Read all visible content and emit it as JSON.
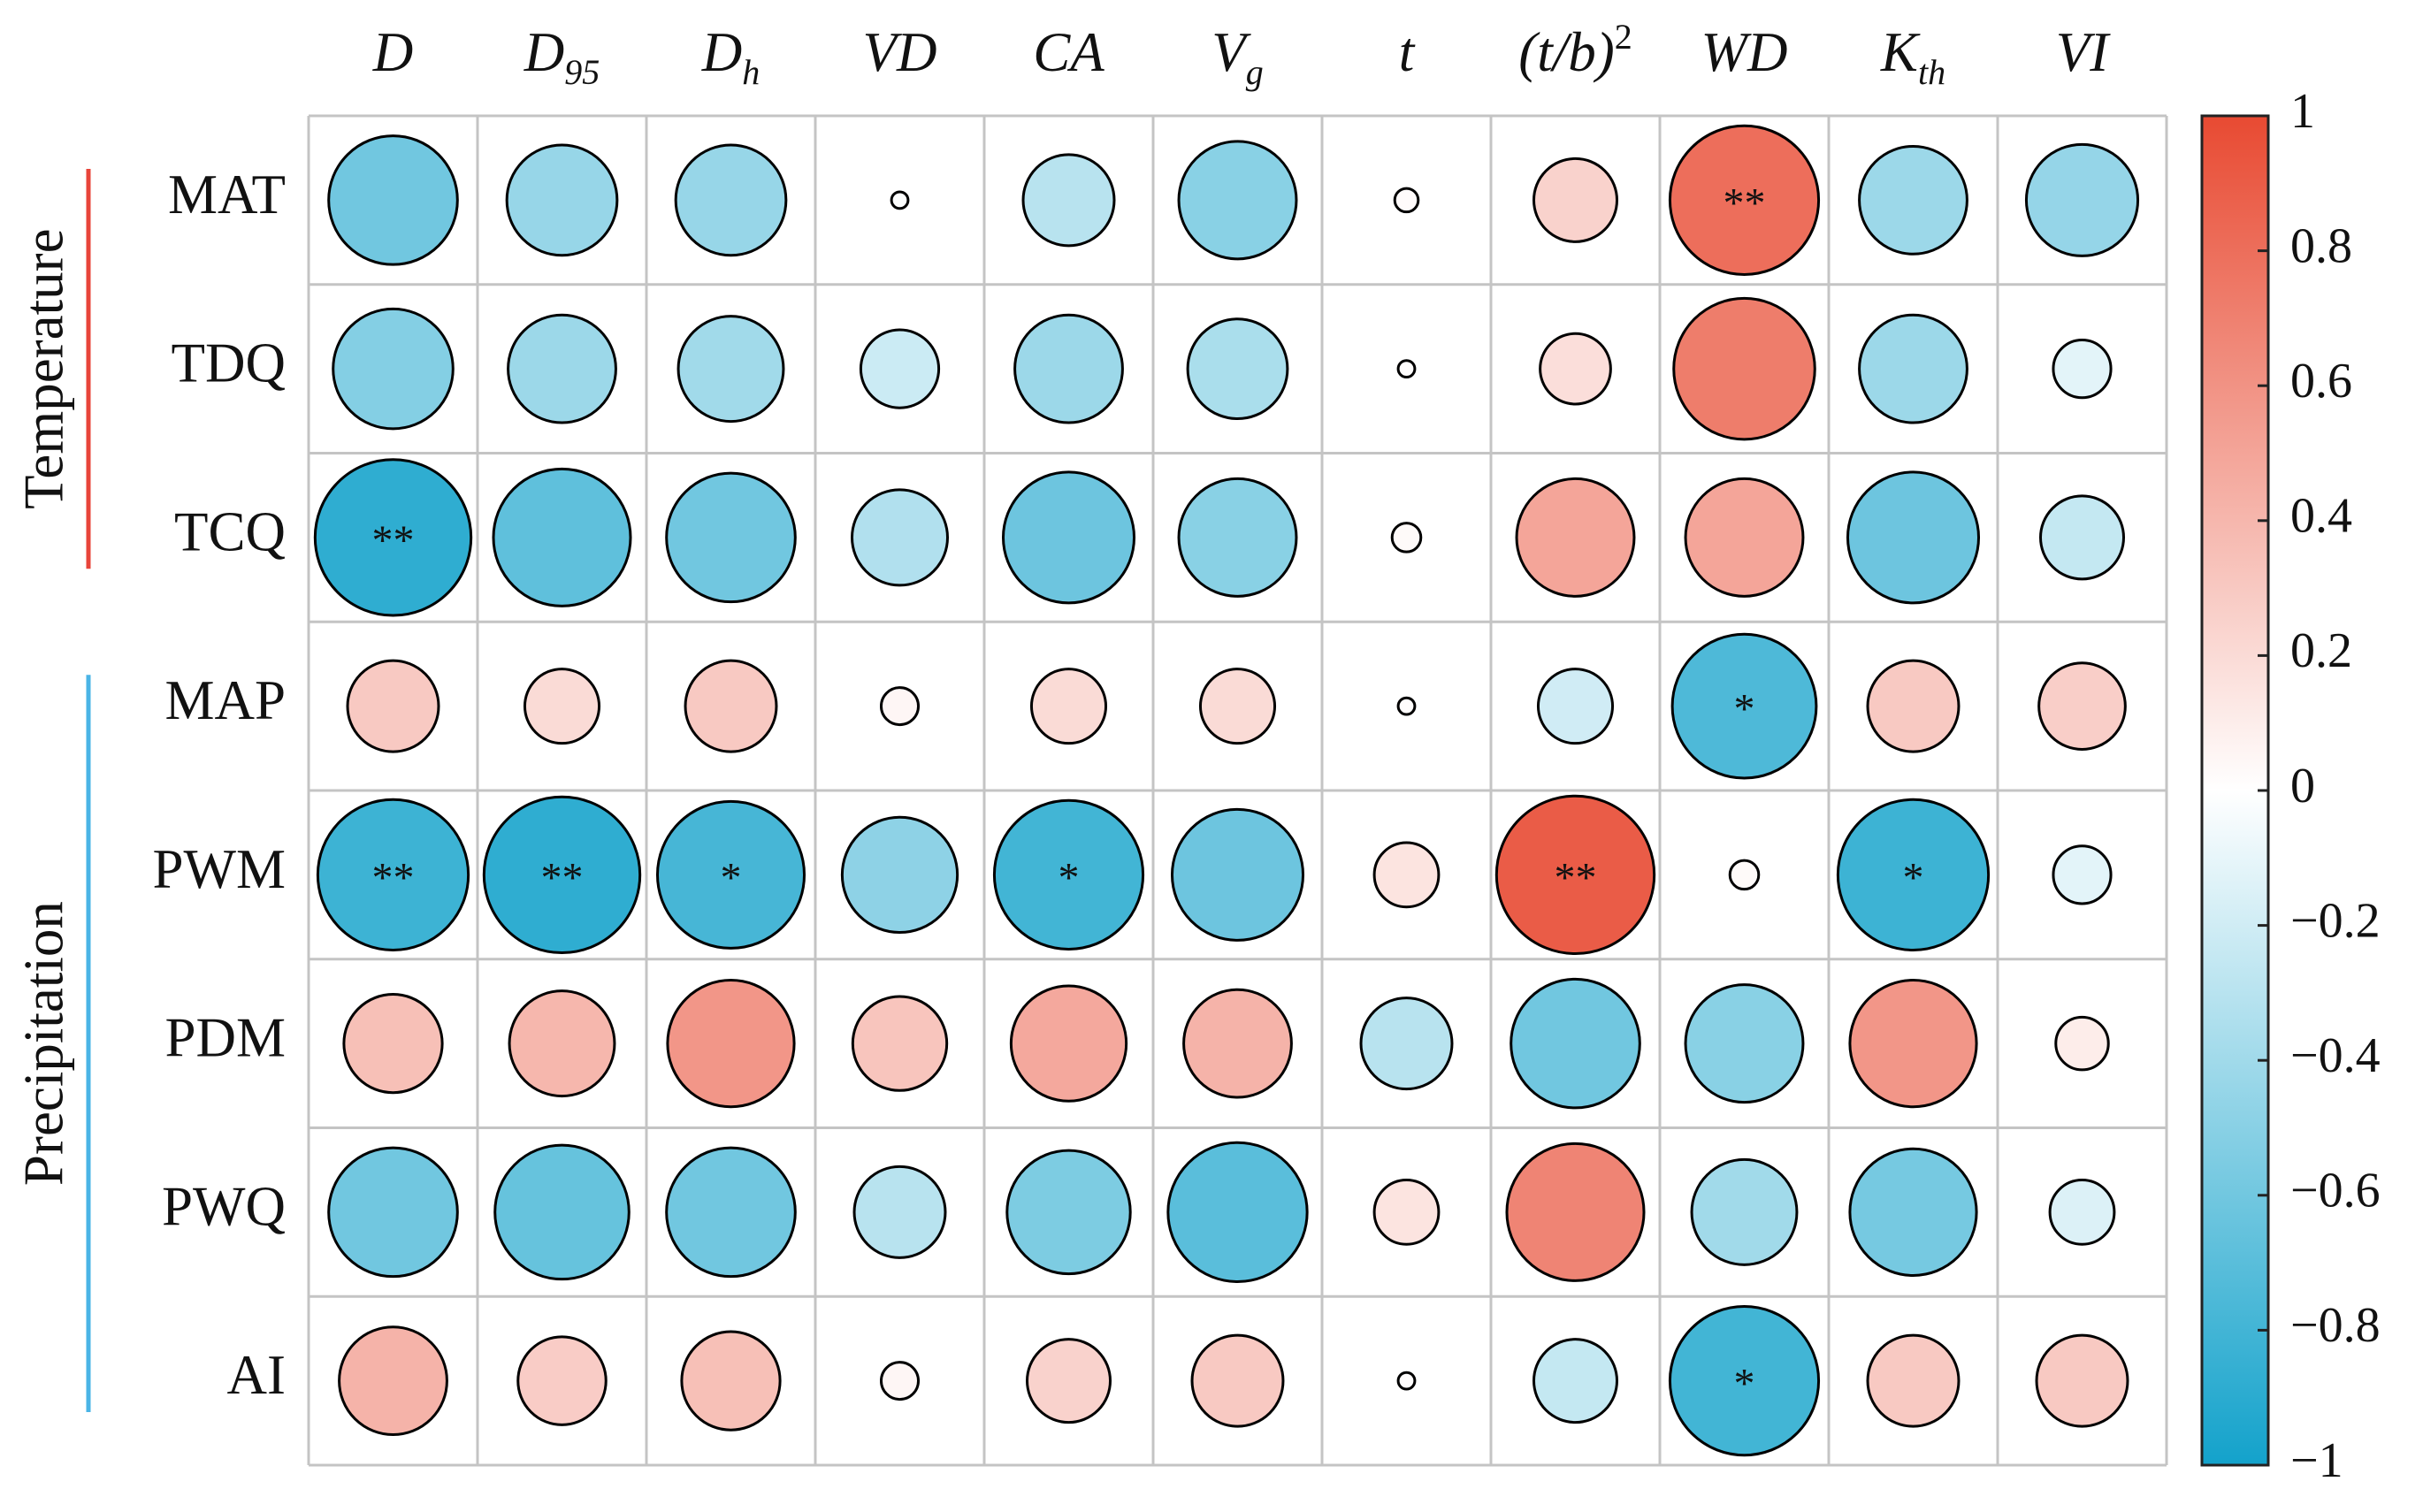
{
  "chart_data": {
    "type": "corrplot",
    "columns": [
      {
        "main": "D"
      },
      {
        "main": "D",
        "sub": "95"
      },
      {
        "main": "D",
        "sub": "h"
      },
      {
        "main": "VD"
      },
      {
        "main": "CA"
      },
      {
        "main": "V",
        "sub": "g"
      },
      {
        "main": "t"
      },
      {
        "main": "(t/b)",
        "sup": "2"
      },
      {
        "main": "WD"
      },
      {
        "main": "K",
        "sub": "th"
      },
      {
        "main": "VI"
      }
    ],
    "rows": [
      "MAT",
      "TDQ",
      "TCQ",
      "MAP",
      "PWM",
      "PDM",
      "PWQ",
      "AI"
    ],
    "groups": [
      {
        "name": "Temperature",
        "rows": [
          0,
          2
        ],
        "color": "#e8443a"
      },
      {
        "name": "Precipitation",
        "rows": [
          3,
          7
        ],
        "color": "#4ab4e6"
      }
    ],
    "values": [
      [
        -0.6,
        -0.44,
        -0.44,
        -0.01,
        -0.3,
        -0.5,
        0.02,
        0.25,
        0.8,
        -0.42,
        -0.45
      ],
      [
        -0.52,
        -0.42,
        -0.4,
        -0.22,
        -0.42,
        -0.36,
        0.01,
        0.18,
        0.72,
        -0.42,
        -0.12
      ],
      [
        -0.88,
        -0.68,
        -0.6,
        -0.33,
        -0.62,
        -0.5,
        0.03,
        0.5,
        0.5,
        -0.62,
        -0.25
      ],
      [
        0.3,
        0.2,
        0.3,
        0.05,
        0.2,
        0.2,
        0.01,
        -0.2,
        -0.75,
        0.3,
        0.27
      ],
      [
        -0.82,
        -0.88,
        -0.78,
        -0.48,
        -0.8,
        -0.62,
        0.15,
        0.9,
        0.03,
        -0.82,
        -0.12
      ],
      [
        0.35,
        0.4,
        0.58,
        0.32,
        0.48,
        0.42,
        -0.3,
        -0.6,
        -0.5,
        0.58,
        0.1
      ],
      [
        -0.6,
        -0.65,
        -0.6,
        -0.3,
        -0.55,
        -0.7,
        0.15,
        0.68,
        -0.4,
        -0.58,
        -0.15
      ],
      [
        0.42,
        0.28,
        0.35,
        0.05,
        0.25,
        0.3,
        0.01,
        -0.25,
        -0.8,
        0.3,
        0.3
      ]
    ],
    "significance": [
      [
        null,
        null,
        null,
        null,
        null,
        null,
        null,
        null,
        "**",
        null,
        null
      ],
      [
        null,
        null,
        null,
        null,
        null,
        null,
        null,
        null,
        null,
        null,
        null
      ],
      [
        "**",
        null,
        null,
        null,
        null,
        null,
        null,
        null,
        null,
        null,
        null
      ],
      [
        null,
        null,
        null,
        null,
        null,
        null,
        null,
        null,
        "*",
        null,
        null
      ],
      [
        "**",
        "**",
        "*",
        null,
        "*",
        null,
        null,
        "**",
        null,
        "*",
        null
      ],
      [
        null,
        null,
        null,
        null,
        null,
        null,
        null,
        null,
        null,
        null,
        null
      ],
      [
        null,
        null,
        null,
        null,
        null,
        null,
        null,
        null,
        null,
        null,
        null
      ],
      [
        null,
        null,
        null,
        null,
        null,
        null,
        null,
        null,
        "*",
        null,
        null
      ]
    ],
    "colors": [
      "#13a2cb",
      "#ffffff",
      "#e84a32"
    ],
    "clim": [
      -1,
      1
    ],
    "cticks": [
      {
        "value": -1,
        "label": "−1"
      },
      {
        "value": -0.8,
        "label": "−0.8"
      },
      {
        "value": -0.6,
        "label": "−0.6"
      },
      {
        "value": -0.4,
        "label": "−0.4"
      },
      {
        "value": -0.2,
        "label": "−0.2"
      },
      0,
      0.2,
      0.4,
      0.6,
      0.8,
      1
    ]
  }
}
